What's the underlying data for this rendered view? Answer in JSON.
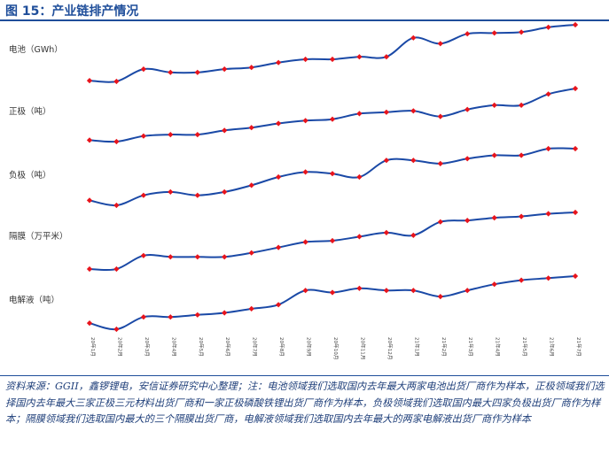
{
  "figure": {
    "title": "图 15：产业链排产情况",
    "source": "资料来源：GGII，鑫锣锂电，安信证券研究中心整理；注：电池领域我们选取国内去年最大两家电池出货厂商作为样本，正极领域我们选择国内去年最大三家正极三元材料出货厂商和一家正极磷酸铁锂出货厂商作为样本，负极领域我们选取国内最大四家负极出货厂商作为样本；隔膜领域我们选取国内最大的三个隔膜出货厂商，电解液领域我们选取国内去年最大的两家电解液出货厂商作为样本"
  },
  "colors": {
    "line": "#1a49a6",
    "marker": "#e8141c",
    "accent": "#1f4e9a"
  },
  "chart_data": {
    "type": "line",
    "x": [
      "20年1月",
      "20年2月",
      "20年3月",
      "20年4月",
      "20年5月",
      "20年6月",
      "20年7月",
      "20年8月",
      "20年9月",
      "20年10月",
      "20年11月",
      "20年12月",
      "21年1月",
      "21年2月",
      "21年3月",
      "21年4月",
      "21年5月",
      "21年6月",
      "21年7月"
    ],
    "x_tick_labels": [
      "20年1月",
      "20年2月",
      "20年3月",
      "20年4月",
      "20年5月",
      "20年6月",
      "20年7月",
      "20年8月",
      "20年9月",
      "20年10月",
      "20年11月",
      "20年12月",
      "21年1月",
      "21年2月",
      "21年3月",
      "21年4月",
      "21年5月",
      "21年6月",
      "21年7月"
    ],
    "yaxis_visible": false,
    "grid": false,
    "series": [
      {
        "name": "电池（GWh）",
        "values": [
          48,
          47,
          62,
          58,
          58,
          62,
          64,
          70,
          74,
          74,
          77,
          77,
          100,
          93,
          105,
          106,
          107,
          113,
          116
        ]
      },
      {
        "name": "正极（吨）",
        "values": [
          21,
          20,
          24,
          25,
          25,
          28,
          30,
          33,
          35,
          36,
          40,
          41,
          42,
          38,
          43,
          46,
          46,
          54,
          58
        ]
      },
      {
        "name": "负极（吨）",
        "values": [
          49,
          46,
          52,
          54,
          52,
          54,
          58,
          63,
          66,
          65,
          63,
          73,
          73,
          71,
          74,
          76,
          76,
          80,
          80
        ]
      },
      {
        "name": "隔膜（万平米）",
        "values": [
          25,
          25,
          35,
          34,
          34,
          34,
          37,
          41,
          45,
          46,
          49,
          52,
          50,
          60,
          61,
          63,
          64,
          66,
          67
        ]
      },
      {
        "name": "电解液（吨）",
        "values": [
          8,
          5,
          11,
          11,
          12,
          13,
          15,
          17,
          24,
          23,
          25,
          24,
          24,
          21,
          24,
          27,
          29,
          30,
          31
        ]
      }
    ]
  }
}
